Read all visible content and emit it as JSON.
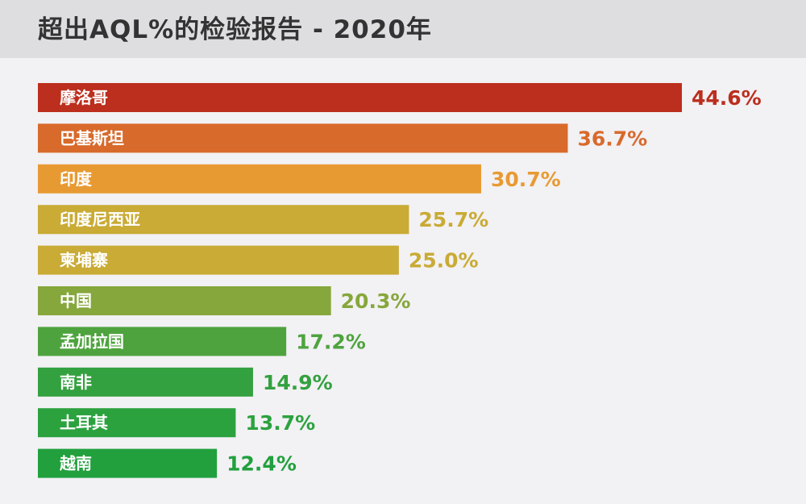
{
  "title": "超出AQL%的检验报告 - 2020年",
  "chart_data": {
    "type": "bar",
    "orientation": "horizontal",
    "title": "超出AQL%的检验报告 - 2020年",
    "categories": [
      "摩洛哥",
      "巴基斯坦",
      "印度",
      "印度尼西亚",
      "柬埔寨",
      "中国",
      "孟加拉国",
      "南非",
      "土耳其",
      "越南"
    ],
    "values": [
      44.6,
      36.7,
      30.7,
      25.7,
      25.0,
      20.3,
      17.2,
      14.9,
      13.7,
      12.4
    ],
    "value_labels": [
      "44.6%",
      "36.7%",
      "30.7%",
      "25.7%",
      "25.0%",
      "20.3%",
      "17.2%",
      "14.9%",
      "13.7%",
      "12.4%"
    ],
    "unit": "%",
    "colors": [
      "#bc2e1d",
      "#d86a2b",
      "#e89a32",
      "#c9ab35",
      "#c9ab35",
      "#86a73b",
      "#4ea33e",
      "#33a13f",
      "#2ca23f",
      "#21a03d"
    ],
    "xlabel": "",
    "ylabel": "",
    "xlim": [
      0,
      44.6
    ],
    "grid": false,
    "legend": "none"
  }
}
